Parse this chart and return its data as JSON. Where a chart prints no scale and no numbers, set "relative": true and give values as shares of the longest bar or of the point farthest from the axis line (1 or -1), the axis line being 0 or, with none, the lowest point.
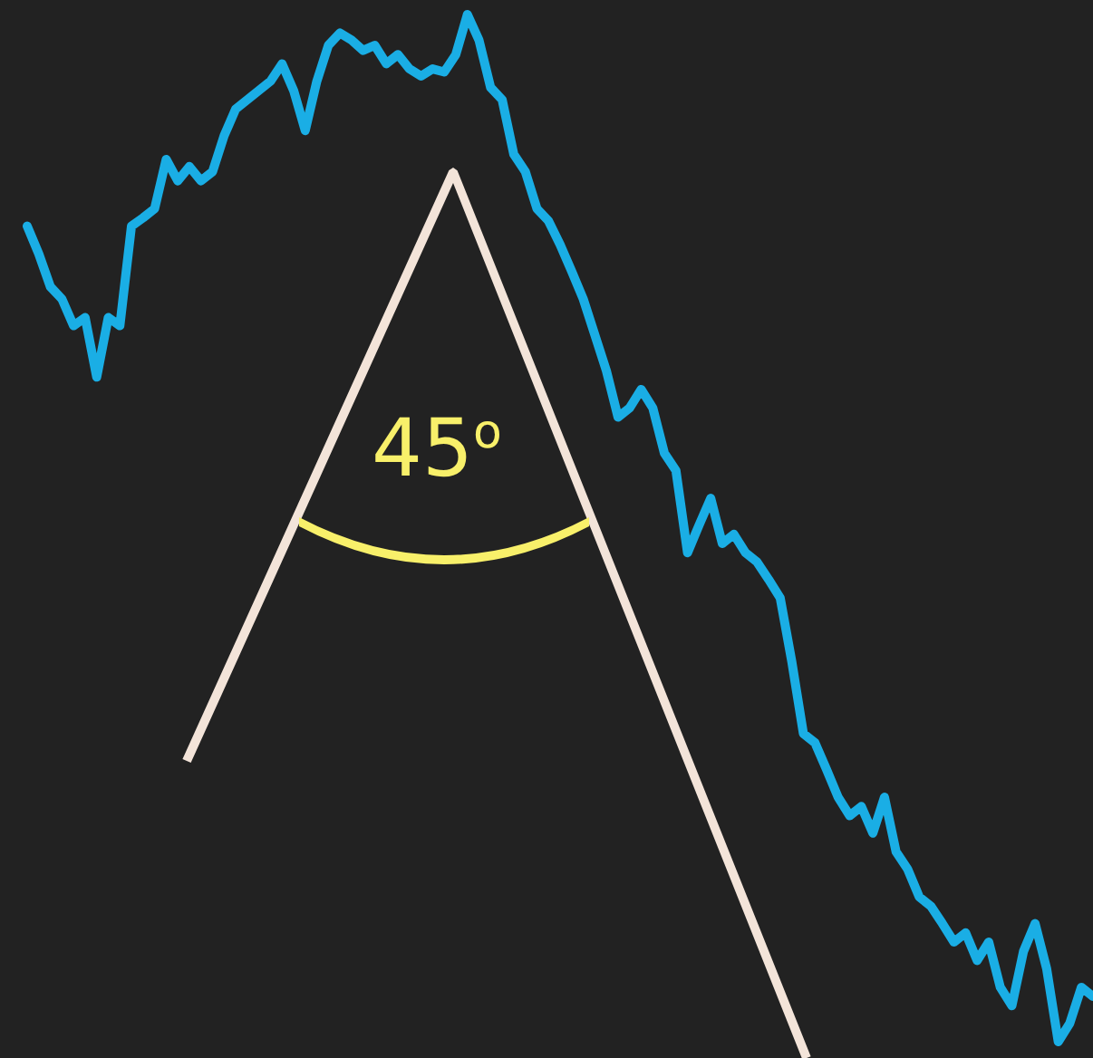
{
  "chart_data": {
    "type": "line",
    "relative": true,
    "line_style": "solid",
    "annotations": [
      "45$^{o}$"
    ],
    "categories": [
      null,
      null,
      null,
      null,
      null,
      null,
      null,
      null,
      null,
      null,
      null,
      null,
      null,
      null,
      null,
      null,
      null,
      null,
      null,
      null,
      null,
      null,
      null,
      null,
      null,
      null,
      null,
      null,
      null,
      null,
      null,
      null,
      null,
      null,
      null,
      null,
      null,
      null,
      null,
      null,
      null,
      null,
      null,
      null,
      null,
      null,
      null,
      null,
      null,
      null,
      null,
      null,
      null,
      null,
      null,
      null,
      null,
      null,
      null,
      null,
      null,
      null,
      null,
      null,
      null,
      null,
      null,
      null,
      null,
      null,
      null,
      null,
      null,
      null,
      null,
      null,
      null,
      null,
      null,
      null,
      null,
      null,
      null,
      null,
      null,
      null,
      null,
      null,
      null,
      null,
      null,
      null,
      null
    ],
    "series": [
      {
        "color": "#1aaee5",
        "values": [
          0.794,
          0.767,
          0.735,
          0.723,
          0.697,
          0.705,
          0.647,
          0.705,
          0.697,
          0.794,
          0.802,
          0.811,
          0.859,
          0.838,
          0.852,
          0.838,
          0.847,
          0.882,
          0.908,
          0.917,
          0.926,
          0.935,
          0.952,
          0.926,
          0.887,
          0.935,
          0.97,
          0.982,
          0.975,
          0.965,
          0.97,
          0.952,
          0.961,
          0.947,
          0.94,
          0.947,
          0.944,
          0.961,
          1,
          0.975,
          0.929,
          0.917,
          0.864,
          0.847,
          0.811,
          0.799,
          0.776,
          0.75,
          0.723,
          0.688,
          0.653,
          0.608,
          0.617,
          0.635,
          0.617,
          0.573,
          0.556,
          0.476,
          0.503,
          0.529,
          0.485,
          0.494,
          0.476,
          0.467,
          0.45,
          0.432,
          0.37,
          0.3,
          0.291,
          0.265,
          0.238,
          0.22,
          0.229,
          0.203,
          0.238,
          0.185,
          0.168,
          0.141,
          0.132,
          0.115,
          0.097,
          0.106,
          0.079,
          0.097,
          0.053,
          0.035,
          0.088,
          0.115,
          0.071,
          0,
          0.018,
          0.053,
          0.044
        ]
      }
    ]
  }
}
